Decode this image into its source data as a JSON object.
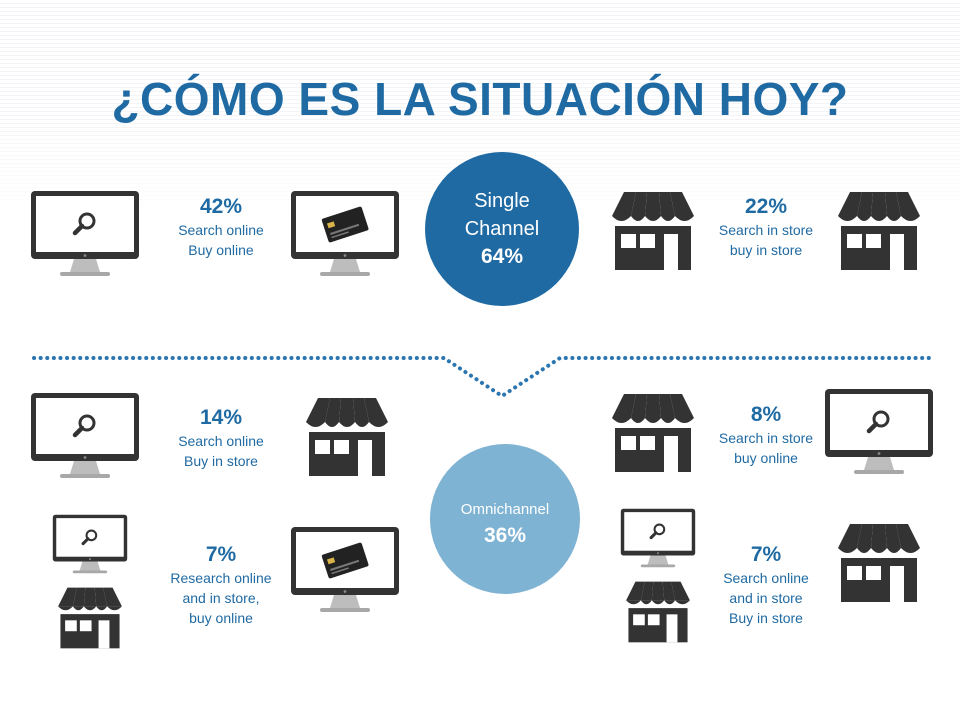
{
  "title": "¿CÓMO ES LA SITUACIÓN HOY?",
  "colors": {
    "primary": "#1f6aa3",
    "light": "#7fb3d3",
    "icon": "#333333"
  },
  "single_channel": {
    "label_line1": "Single",
    "label_line2": "Channel",
    "percent": "64%",
    "items": [
      {
        "percent": "42%",
        "line1": "Search online",
        "line2": "Buy online",
        "icons": [
          "monitor-search-icon",
          "monitor-card-icon"
        ]
      },
      {
        "percent": "22%",
        "line1": "Search in store",
        "line2": "buy in store",
        "icons": [
          "store-icon",
          "store-icon"
        ]
      }
    ]
  },
  "omnichannel": {
    "label": "Omnichannel",
    "percent": "36%",
    "items": [
      {
        "percent": "14%",
        "line1": "Search online",
        "line2": "Buy in store",
        "icons": [
          "monitor-search-icon",
          "store-icon"
        ]
      },
      {
        "percent": "8%",
        "line1": "Search in store",
        "line2": "buy online",
        "icons": [
          "store-icon",
          "monitor-search-icon"
        ]
      },
      {
        "percent": "7%",
        "line1": "Research online",
        "line2": "and in store,",
        "line3": "buy online",
        "icons": [
          "monitor-search-icon",
          "store-icon",
          "monitor-card-icon"
        ]
      },
      {
        "percent": "7%",
        "line1": "Search online",
        "line2": "and in store",
        "line3": "Buy in store",
        "icons": [
          "monitor-search-icon",
          "store-icon",
          "store-icon"
        ]
      }
    ]
  }
}
